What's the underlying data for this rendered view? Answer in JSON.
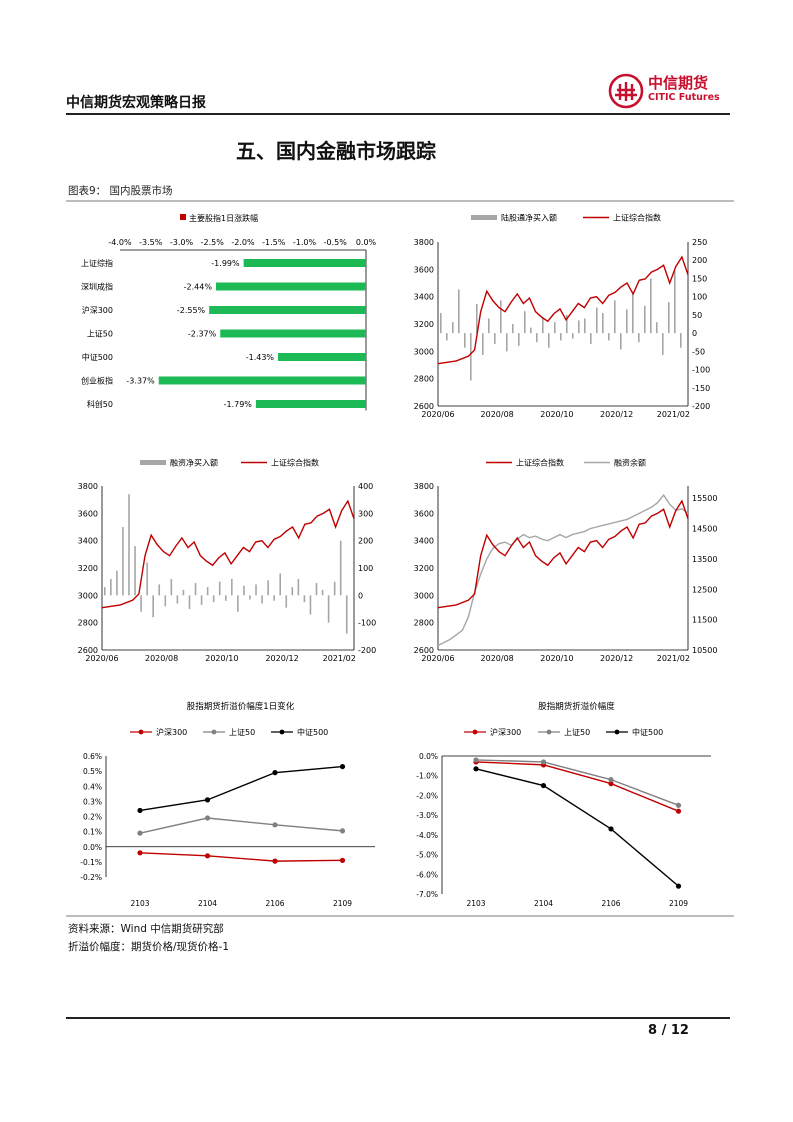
{
  "header": {
    "title": "中信期货宏观策略日报",
    "logo_cn": "中信期货",
    "logo_en": "CITIC Futures",
    "brand_color": "#c8102e"
  },
  "section_title": "五、国内金融市场跟踪",
  "figure_label": "图表9：  国内股票市场",
  "notes": {
    "source": "资料来源：Wind 中信期货研究部",
    "definition": "折溢价幅度：期货价格/现货价格-1"
  },
  "footer": {
    "page": "8 / 12"
  },
  "colors": {
    "red": "#c00000",
    "green": "#1db954",
    "gray": "#a6a6a6",
    "black": "#000000"
  },
  "chart_data": [
    {
      "type": "bar",
      "orientation": "horizontal",
      "legend": "主要股指1日涨跌幅",
      "categories": [
        "上证综指",
        "深圳成指",
        "沪深300",
        "上证50",
        "中证500",
        "创业板指",
        "科创50"
      ],
      "values": [
        -1.99,
        -2.44,
        -2.55,
        -2.37,
        -1.43,
        -3.37,
        -1.79
      ],
      "value_labels": [
        "-1.99%",
        "-2.44%",
        "-2.55%",
        "-2.37%",
        "-1.43%",
        "-3.37%",
        "-1.79%"
      ],
      "xlim": [
        -4.0,
        0.0
      ],
      "xticks": [
        "-4.0%",
        "-3.5%",
        "-3.0%",
        "-2.5%",
        "-2.0%",
        "-1.5%",
        "-1.0%",
        "-0.5%",
        "0.0%"
      ]
    },
    {
      "type": "bar+line",
      "series": [
        {
          "name": "陆股通净买入额",
          "kind": "bar",
          "axis": "right"
        },
        {
          "name": "上证综合指数",
          "kind": "line",
          "axis": "left"
        }
      ],
      "left_ticks": [
        "3800",
        "3600",
        "3400",
        "3200",
        "3000",
        "2800",
        "2600"
      ],
      "right_ticks": [
        "250",
        "200",
        "150",
        "100",
        "50",
        "0",
        "-50",
        "-100",
        "-150",
        "-200"
      ],
      "x_ticks": [
        "2020/06",
        "2020/08",
        "2020/10",
        "2020/12",
        "2021/02"
      ],
      "ylim_left": [
        2600,
        3800
      ],
      "ylim_right": [
        -200,
        250
      ],
      "index_points": [
        [
          0,
          2910
        ],
        [
          3,
          2930
        ],
        [
          5,
          2965
        ],
        [
          6,
          3010
        ],
        [
          7,
          3290
        ],
        [
          8,
          3440
        ],
        [
          9,
          3370
        ],
        [
          10,
          3320
        ],
        [
          11,
          3290
        ],
        [
          12,
          3360
        ],
        [
          13,
          3420
        ],
        [
          14,
          3350
        ],
        [
          15,
          3390
        ],
        [
          16,
          3290
        ],
        [
          17,
          3250
        ],
        [
          18,
          3220
        ],
        [
          19,
          3275
        ],
        [
          20,
          3310
        ],
        [
          21,
          3230
        ],
        [
          22,
          3290
        ],
        [
          23,
          3350
        ],
        [
          24,
          3320
        ],
        [
          25,
          3390
        ],
        [
          26,
          3400
        ],
        [
          27,
          3350
        ],
        [
          28,
          3410
        ],
        [
          29,
          3430
        ],
        [
          30,
          3470
        ],
        [
          31,
          3500
        ],
        [
          32,
          3420
        ],
        [
          33,
          3520
        ],
        [
          34,
          3530
        ],
        [
          35,
          3580
        ],
        [
          36,
          3600
        ],
        [
          37,
          3630
        ],
        [
          38,
          3500
        ],
        [
          39,
          3620
        ],
        [
          40,
          3690
        ],
        [
          41,
          3560
        ]
      ],
      "flow_bars": [
        55,
        -20,
        30,
        120,
        -40,
        -130,
        80,
        -60,
        40,
        -30,
        90,
        -50,
        25,
        -35,
        60,
        15,
        -25,
        45,
        -40,
        30,
        -20,
        50,
        -15,
        35,
        40,
        -30,
        70,
        55,
        -20,
        90,
        -45,
        65,
        110,
        -25,
        75,
        150,
        30,
        -60,
        85,
        170,
        -40
      ]
    },
    {
      "type": "bar+line",
      "series": [
        {
          "name": "融资净买入额",
          "kind": "bar",
          "axis": "right"
        },
        {
          "name": "上证综合指数",
          "kind": "line",
          "axis": "left"
        }
      ],
      "left_ticks": [
        "3800",
        "3600",
        "3400",
        "3200",
        "3000",
        "2800",
        "2600"
      ],
      "right_ticks": [
        "400",
        "300",
        "200",
        "100",
        "0",
        "-100",
        "-200"
      ],
      "x_ticks": [
        "2020/06",
        "2020/08",
        "2020/10",
        "2020/12",
        "2021/02"
      ],
      "ylim_left": [
        2600,
        3800
      ],
      "ylim_right": [
        -200,
        400
      ],
      "index_points": [
        [
          0,
          2910
        ],
        [
          3,
          2930
        ],
        [
          5,
          2965
        ],
        [
          6,
          3010
        ],
        [
          7,
          3290
        ],
        [
          8,
          3440
        ],
        [
          9,
          3370
        ],
        [
          10,
          3320
        ],
        [
          11,
          3290
        ],
        [
          12,
          3360
        ],
        [
          13,
          3420
        ],
        [
          14,
          3350
        ],
        [
          15,
          3390
        ],
        [
          16,
          3290
        ],
        [
          17,
          3250
        ],
        [
          18,
          3220
        ],
        [
          19,
          3275
        ],
        [
          20,
          3310
        ],
        [
          21,
          3230
        ],
        [
          22,
          3290
        ],
        [
          23,
          3350
        ],
        [
          24,
          3320
        ],
        [
          25,
          3390
        ],
        [
          26,
          3400
        ],
        [
          27,
          3350
        ],
        [
          28,
          3410
        ],
        [
          29,
          3430
        ],
        [
          30,
          3470
        ],
        [
          31,
          3500
        ],
        [
          32,
          3420
        ],
        [
          33,
          3520
        ],
        [
          34,
          3530
        ],
        [
          35,
          3580
        ],
        [
          36,
          3600
        ],
        [
          37,
          3630
        ],
        [
          38,
          3500
        ],
        [
          39,
          3620
        ],
        [
          40,
          3690
        ],
        [
          41,
          3560
        ]
      ],
      "flow_bars": [
        30,
        60,
        90,
        250,
        370,
        180,
        -60,
        120,
        -80,
        40,
        -40,
        60,
        -30,
        20,
        -50,
        45,
        -35,
        30,
        -25,
        50,
        -20,
        60,
        -60,
        35,
        -15,
        40,
        -30,
        55,
        -20,
        80,
        -45,
        30,
        60,
        -25,
        -70,
        45,
        20,
        -100,
        50,
        200,
        -140
      ]
    },
    {
      "type": "line",
      "series": [
        {
          "name": "上证综合指数",
          "axis": "left",
          "color": "#c00000"
        },
        {
          "name": "融资余额",
          "axis": "right",
          "color": "#a6a6a6"
        }
      ],
      "left_ticks": [
        "3800",
        "3600",
        "3400",
        "3200",
        "3000",
        "2800",
        "2600"
      ],
      "right_ticks": [
        "15500",
        "14500",
        "13500",
        "12500",
        "11500",
        "10500"
      ],
      "x_ticks": [
        "2020/06",
        "2020/08",
        "2020/10",
        "2020/12",
        "2021/02"
      ],
      "ylim_left": [
        2600,
        3800
      ],
      "ylim_right": [
        10500,
        15900
      ],
      "index_points": [
        [
          0,
          2910
        ],
        [
          3,
          2930
        ],
        [
          5,
          2965
        ],
        [
          6,
          3010
        ],
        [
          7,
          3290
        ],
        [
          8,
          3440
        ],
        [
          9,
          3370
        ],
        [
          10,
          3320
        ],
        [
          11,
          3290
        ],
        [
          12,
          3360
        ],
        [
          13,
          3420
        ],
        [
          14,
          3350
        ],
        [
          15,
          3390
        ],
        [
          16,
          3290
        ],
        [
          17,
          3250
        ],
        [
          18,
          3220
        ],
        [
          19,
          3275
        ],
        [
          20,
          3310
        ],
        [
          21,
          3230
        ],
        [
          22,
          3290
        ],
        [
          23,
          3350
        ],
        [
          24,
          3320
        ],
        [
          25,
          3390
        ],
        [
          26,
          3400
        ],
        [
          27,
          3350
        ],
        [
          28,
          3410
        ],
        [
          29,
          3430
        ],
        [
          30,
          3470
        ],
        [
          31,
          3500
        ],
        [
          32,
          3420
        ],
        [
          33,
          3520
        ],
        [
          34,
          3530
        ],
        [
          35,
          3580
        ],
        [
          36,
          3600
        ],
        [
          37,
          3630
        ],
        [
          38,
          3500
        ],
        [
          39,
          3620
        ],
        [
          40,
          3690
        ],
        [
          41,
          3560
        ]
      ],
      "margin_points": [
        [
          0,
          10650
        ],
        [
          2,
          10850
        ],
        [
          4,
          11150
        ],
        [
          5,
          11600
        ],
        [
          6,
          12400
        ],
        [
          7,
          13000
        ],
        [
          8,
          13500
        ],
        [
          9,
          13850
        ],
        [
          10,
          14000
        ],
        [
          11,
          14050
        ],
        [
          12,
          13950
        ],
        [
          13,
          14150
        ],
        [
          14,
          14300
        ],
        [
          15,
          14200
        ],
        [
          16,
          14250
        ],
        [
          17,
          14150
        ],
        [
          18,
          14100
        ],
        [
          19,
          14200
        ],
        [
          20,
          14300
        ],
        [
          21,
          14200
        ],
        [
          22,
          14300
        ],
        [
          23,
          14350
        ],
        [
          24,
          14400
        ],
        [
          25,
          14500
        ],
        [
          26,
          14550
        ],
        [
          27,
          14600
        ],
        [
          28,
          14650
        ],
        [
          29,
          14700
        ],
        [
          30,
          14750
        ],
        [
          31,
          14800
        ],
        [
          32,
          14900
        ],
        [
          33,
          15000
        ],
        [
          34,
          15100
        ],
        [
          35,
          15200
        ],
        [
          36,
          15350
        ],
        [
          37,
          15600
        ],
        [
          38,
          15300
        ],
        [
          39,
          15100
        ],
        [
          40,
          15150
        ],
        [
          41,
          15000
        ]
      ]
    },
    {
      "type": "line",
      "title": "股指期货折溢价幅度1日变化",
      "categories": [
        "2103",
        "2104",
        "2106",
        "2109"
      ],
      "yticks": [
        "0.6%",
        "0.5%",
        "0.4%",
        "0.3%",
        "0.2%",
        "0.1%",
        "0.0%",
        "-0.1%",
        "-0.2%"
      ],
      "ylim": [
        -0.2,
        0.6
      ],
      "series": [
        {
          "name": "沪深300",
          "color": "#c00000",
          "values": [
            -0.04,
            -0.06,
            -0.095,
            -0.09
          ]
        },
        {
          "name": "上证50",
          "color": "#808080",
          "values": [
            0.09,
            0.19,
            0.145,
            0.105
          ]
        },
        {
          "name": "中证500",
          "color": "#000000",
          "values": [
            0.24,
            0.31,
            0.49,
            0.53
          ]
        }
      ]
    },
    {
      "type": "line",
      "title": "股指期货折溢价幅度",
      "categories": [
        "2103",
        "2104",
        "2106",
        "2109"
      ],
      "yticks": [
        "0.0%",
        "-1.0%",
        "-2.0%",
        "-3.0%",
        "-4.0%",
        "-5.0%",
        "-6.0%",
        "-7.0%"
      ],
      "ylim": [
        -7.0,
        0.0
      ],
      "series": [
        {
          "name": "沪深300",
          "color": "#c00000",
          "values": [
            -0.3,
            -0.45,
            -1.4,
            -2.8
          ]
        },
        {
          "name": "上证50",
          "color": "#808080",
          "values": [
            -0.2,
            -0.3,
            -1.2,
            -2.5
          ]
        },
        {
          "name": "中证500",
          "color": "#000000",
          "values": [
            -0.65,
            -1.5,
            -3.7,
            -6.6
          ]
        }
      ]
    }
  ]
}
